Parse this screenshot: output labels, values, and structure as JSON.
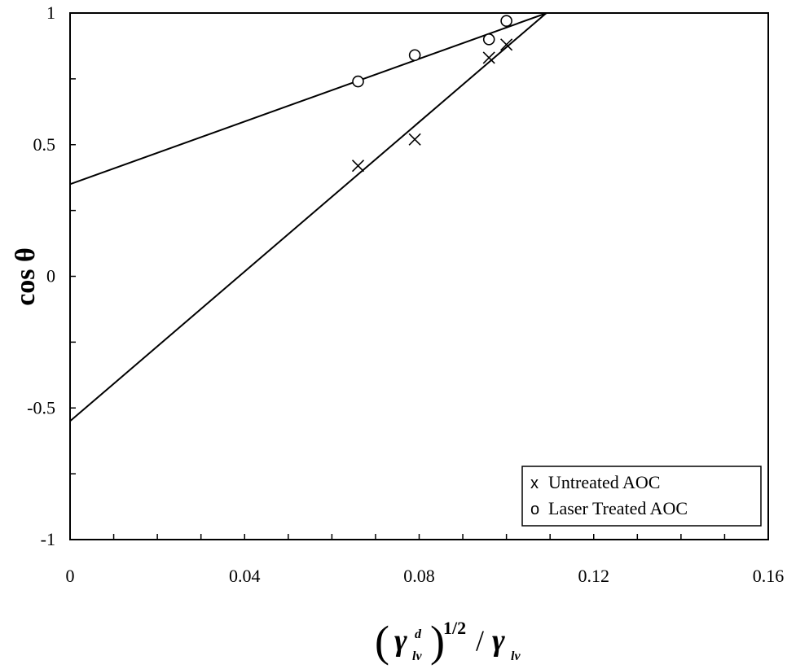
{
  "chart_data": {
    "type": "scatter",
    "title": "",
    "xlabel": {
      "gamma": "γ",
      "sup_d": "d",
      "sub_lv": "lv",
      "exponent": "1/2",
      "divider": "/",
      "gamma2": "γ",
      "sub_lv2": "lv"
    },
    "ylabel": "cos θ",
    "xlim": [
      0,
      0.16
    ],
    "ylim": [
      -1,
      1
    ],
    "xticks": [
      "0",
      "0.04",
      "0.08",
      "0.12",
      "0.16"
    ],
    "yticks": [
      "-1",
      "-0.5",
      "0",
      "0.5",
      "1"
    ],
    "x_minor_step": 0.01,
    "y_minor_step": 0.25,
    "grid": false,
    "legend_position": "bottom-right",
    "series": [
      {
        "name": "Untreated AOC",
        "legend_symbol": "x",
        "marker": "x",
        "points": [
          [
            0.066,
            0.42
          ],
          [
            0.079,
            0.52
          ],
          [
            0.096,
            0.83
          ],
          [
            0.1,
            0.88
          ]
        ],
        "fit": {
          "intercept": -0.55,
          "slope": 14.2
        }
      },
      {
        "name": "Laser Treated AOC",
        "legend_symbol": "o",
        "marker": "circle",
        "points": [
          [
            0.066,
            0.74
          ],
          [
            0.079,
            0.84
          ],
          [
            0.096,
            0.9
          ],
          [
            0.1,
            0.97
          ]
        ],
        "fit": {
          "intercept": 0.35,
          "slope": 5.95
        }
      }
    ]
  }
}
